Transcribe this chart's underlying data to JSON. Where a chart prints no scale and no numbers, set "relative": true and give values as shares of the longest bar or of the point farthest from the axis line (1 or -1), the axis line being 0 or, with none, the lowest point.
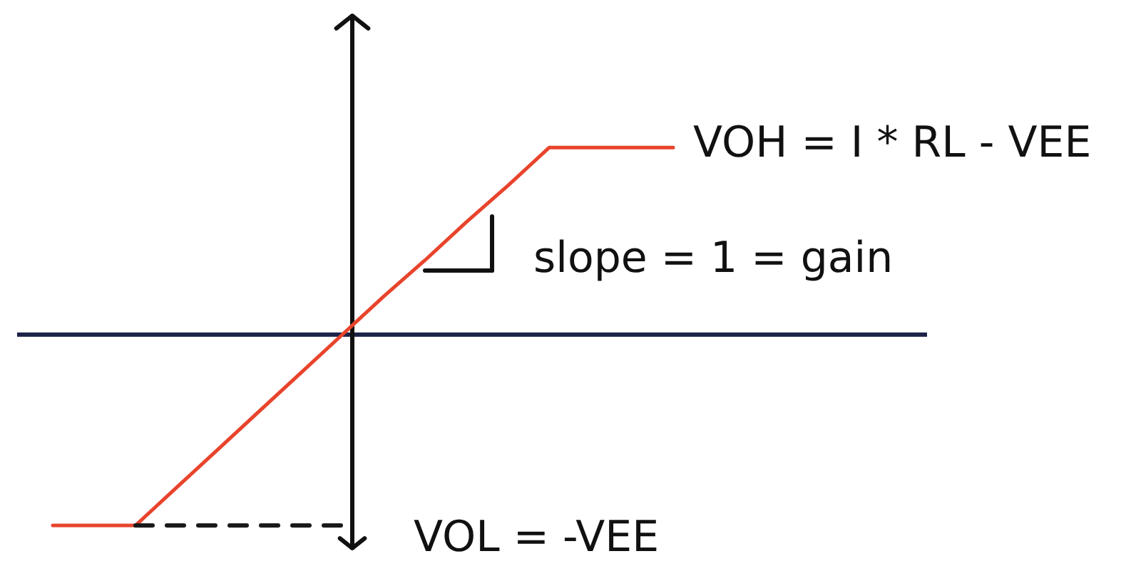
{
  "chart_data": {
    "type": "line",
    "relative": true,
    "categories": [
      null,
      null,
      null,
      null,
      null,
      null,
      null,
      null,
      null,
      null,
      null,
      null,
      null,
      null,
      null,
      null
    ],
    "series": [
      {
        "color": "#e8442c",
        "values": [
          -1,
          -1,
          -1,
          -0.8,
          -0.6,
          -0.4,
          -0.2,
          0,
          0.2,
          0.39,
          0.59,
          0.78,
          0.98,
          0.98,
          0.98,
          0.98
        ]
      },
      {
        "color": "#1a1a1a",
        "line_style": "dashed",
        "values": [
          null,
          null,
          -1,
          -1,
          -1,
          -1,
          -1,
          -1,
          null,
          null,
          null,
          null,
          null,
          null,
          null,
          null
        ]
      }
    ],
    "annotations": [
      "VOH = I * RL - VEE",
      "slope = 1 = gain",
      "VOL = -VEE"
    ]
  }
}
